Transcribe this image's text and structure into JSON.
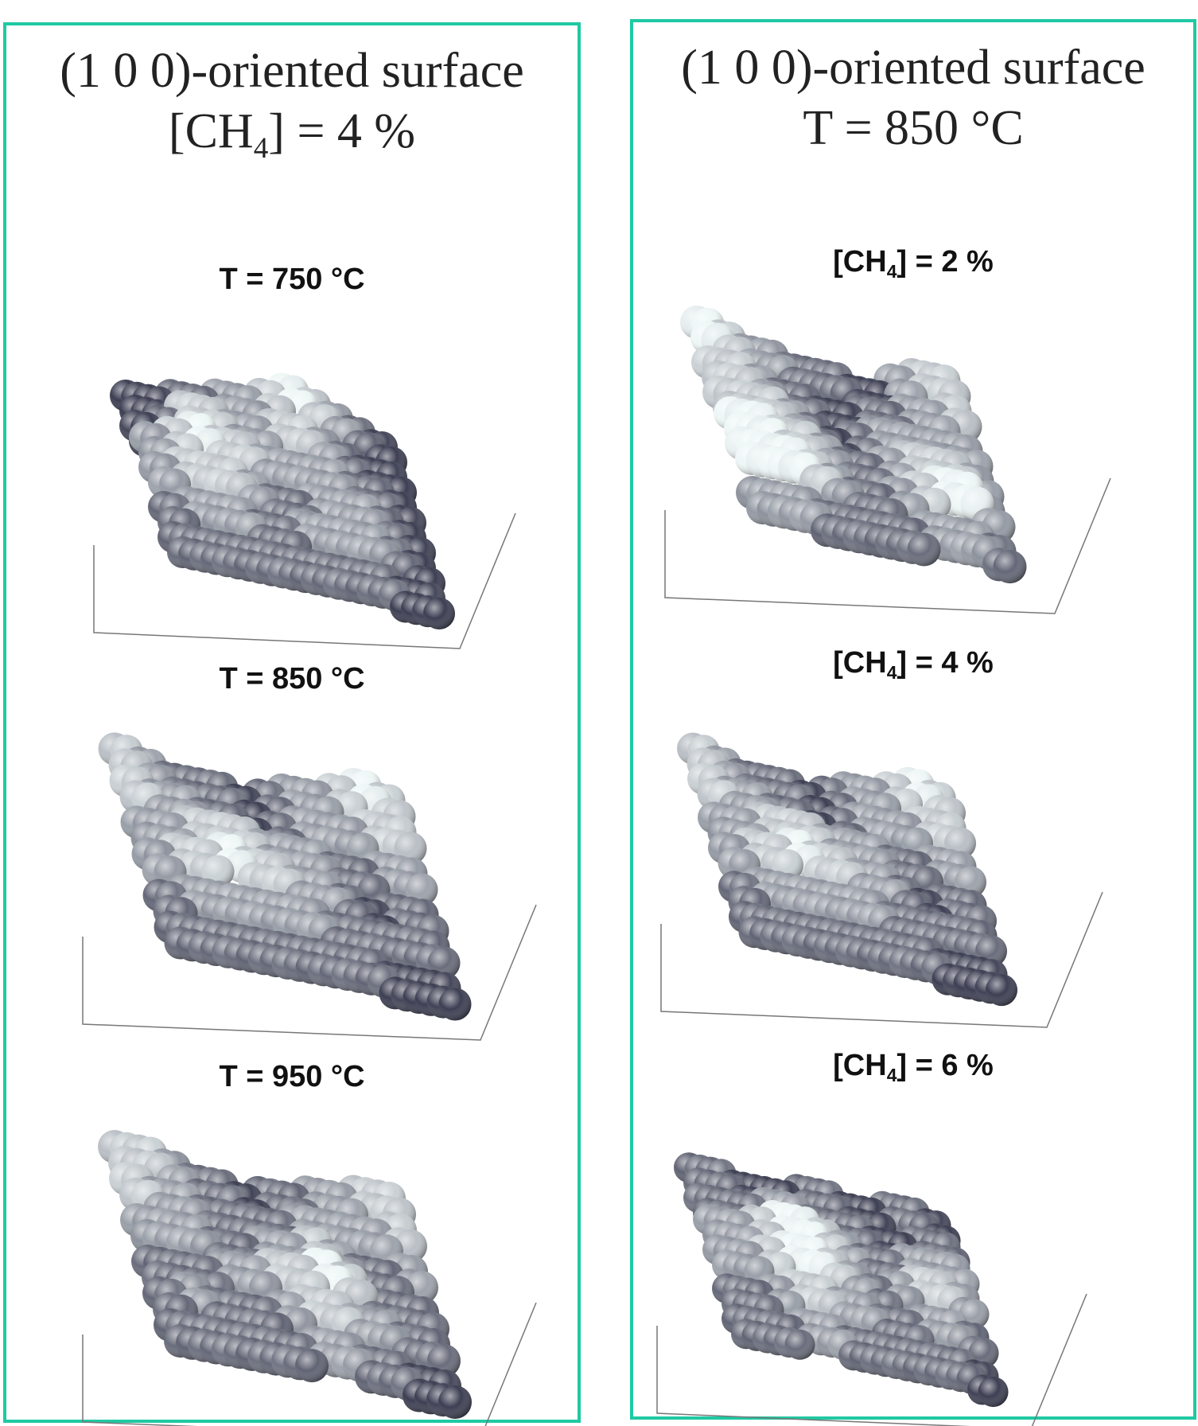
{
  "colors": {
    "frame": "#1fc9a3",
    "atom_dark": "#3c3e52",
    "atom_light": "#eef6f6"
  },
  "left_panel": {
    "header": {
      "line1": "(1 0 0)-oriented surface",
      "line2_pre": "[CH",
      "line2_sub": "4",
      "line2_post": "] = 4 %"
    },
    "subplots": [
      {
        "label": "T = 750 °C",
        "heights": [
          [
            0,
            0,
            1,
            1,
            2,
            2,
            3,
            4,
            3,
            2,
            1,
            0
          ],
          [
            0,
            1,
            3,
            3,
            2,
            2,
            3,
            3,
            2,
            1,
            0,
            0
          ],
          [
            2,
            3,
            4,
            3,
            3,
            2,
            2,
            2,
            2,
            1,
            1,
            0
          ],
          [
            2,
            3,
            3,
            3,
            2,
            1,
            1,
            2,
            2,
            2,
            1,
            0
          ],
          [
            1,
            2,
            2,
            2,
            1,
            1,
            2,
            2,
            2,
            2,
            1,
            0
          ],
          [
            1,
            1,
            1,
            1,
            1,
            1,
            1,
            1,
            1,
            1,
            0,
            0
          ]
        ]
      },
      {
        "label": "T = 850 °C",
        "heights": [
          [
            3,
            2,
            1,
            1,
            1,
            0,
            1,
            2,
            2,
            3,
            4,
            3
          ],
          [
            3,
            2,
            2,
            1,
            1,
            0,
            1,
            2,
            2,
            2,
            3,
            3
          ],
          [
            2,
            2,
            3,
            3,
            3,
            2,
            2,
            2,
            1,
            1,
            2,
            2
          ],
          [
            2,
            3,
            3,
            4,
            3,
            3,
            2,
            2,
            1,
            0,
            1,
            1
          ],
          [
            1,
            2,
            2,
            2,
            2,
            2,
            2,
            1,
            1,
            1,
            1,
            1
          ],
          [
            1,
            1,
            1,
            1,
            1,
            1,
            1,
            1,
            1,
            0,
            0,
            0
          ]
        ]
      },
      {
        "label": "T = 950 °C",
        "heights": [
          [
            3,
            3,
            2,
            1,
            1,
            0,
            1,
            1,
            2,
            2,
            3,
            3
          ],
          [
            3,
            2,
            2,
            1,
            1,
            1,
            1,
            2,
            2,
            2,
            2,
            3
          ],
          [
            2,
            2,
            2,
            1,
            1,
            2,
            2,
            3,
            2,
            1,
            1,
            2
          ],
          [
            1,
            1,
            1,
            2,
            2,
            3,
            3,
            4,
            3,
            1,
            1,
            1
          ],
          [
            1,
            2,
            1,
            1,
            1,
            2,
            3,
            3,
            2,
            2,
            1,
            1
          ],
          [
            1,
            1,
            1,
            1,
            1,
            1,
            2,
            2,
            1,
            1,
            0,
            0
          ]
        ]
      }
    ]
  },
  "right_panel": {
    "header": {
      "line1": "(1 0 0)-oriented surface",
      "line2": "T = 850 °C"
    },
    "subplots": [
      {
        "label_pre": "[CH",
        "label_sub": "4",
        "label_post": "] = 2 %",
        "heights": [
          [
            4,
            3,
            2,
            2,
            1,
            1,
            1,
            0,
            0,
            2,
            3,
            3
          ],
          [
            3,
            3,
            2,
            1,
            1,
            0,
            0,
            1,
            1,
            2,
            2,
            3
          ],
          [
            3,
            3,
            3,
            2,
            1,
            0,
            1,
            2,
            2,
            2,
            2,
            2
          ],
          [
            4,
            4,
            3,
            3,
            2,
            1,
            1,
            2,
            3,
            3,
            3,
            2
          ],
          [
            4,
            4,
            4,
            3,
            2,
            1,
            1,
            2,
            3,
            4,
            4,
            2
          ],
          [
            2,
            2,
            2,
            1,
            1,
            1,
            1,
            1,
            2,
            2,
            2,
            1
          ]
        ]
      },
      {
        "label_pre": "[CH",
        "label_sub": "4",
        "label_post": "] = 4 %",
        "heights": [
          [
            3,
            2,
            1,
            1,
            1,
            0,
            1,
            2,
            2,
            3,
            4,
            3
          ],
          [
            3,
            2,
            2,
            1,
            1,
            0,
            1,
            2,
            2,
            2,
            3,
            3
          ],
          [
            2,
            2,
            3,
            3,
            3,
            2,
            2,
            2,
            1,
            1,
            2,
            2
          ],
          [
            2,
            3,
            3,
            4,
            3,
            3,
            2,
            2,
            1,
            0,
            1,
            1
          ],
          [
            1,
            2,
            2,
            2,
            2,
            2,
            2,
            1,
            1,
            1,
            1,
            1
          ],
          [
            1,
            1,
            1,
            1,
            1,
            1,
            1,
            1,
            1,
            0,
            0,
            0
          ]
        ]
      },
      {
        "label_pre": "[CH",
        "label_sub": "4",
        "label_post": "] = 6 %",
        "heights": [
          [
            1,
            1,
            0,
            0,
            0,
            1,
            1,
            0,
            0,
            1,
            1,
            0
          ],
          [
            1,
            1,
            1,
            2,
            2,
            1,
            1,
            1,
            0,
            0,
            1,
            1
          ],
          [
            2,
            2,
            3,
            4,
            4,
            3,
            2,
            1,
            1,
            2,
            2,
            2
          ],
          [
            2,
            2,
            3,
            4,
            4,
            3,
            2,
            1,
            2,
            3,
            3,
            2
          ],
          [
            1,
            1,
            2,
            3,
            3,
            2,
            2,
            1,
            1,
            2,
            2,
            1
          ],
          [
            1,
            1,
            1,
            2,
            2,
            1,
            1,
            1,
            1,
            1,
            1,
            0
          ]
        ]
      }
    ]
  }
}
